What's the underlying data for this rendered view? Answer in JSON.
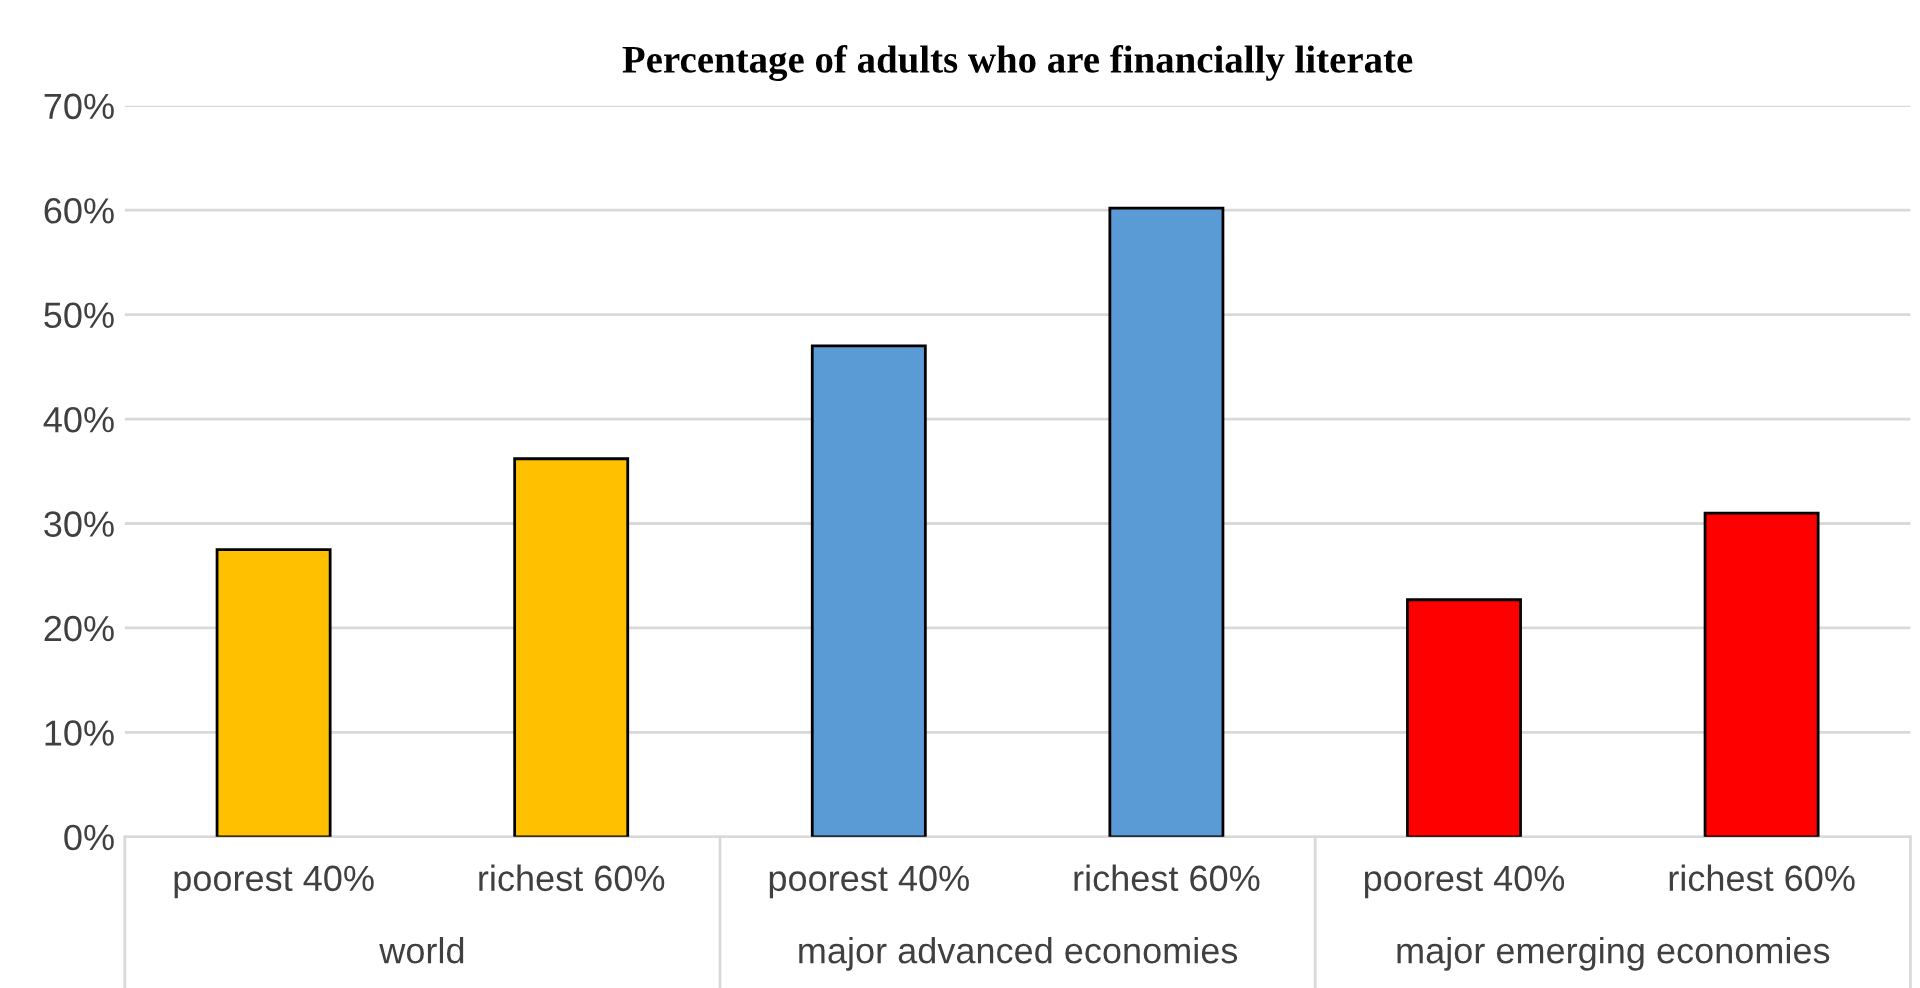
{
  "chart_data": {
    "type": "bar",
    "title": "Percentage of adults who are financially literate",
    "categories": [
      "poorest 40%",
      "richest 60%",
      "poorest 40%",
      "richest 60%",
      "poorest 40%",
      "richest 60%"
    ],
    "values": [
      27.5,
      36.2,
      47.0,
      60.2,
      22.7,
      31.0
    ],
    "colors": [
      "#ffc000",
      "#ffc000",
      "#5b9bd5",
      "#5b9bd5",
      "#ff0000",
      "#ff0000"
    ],
    "annotations": [
      "world",
      "major advanced economies",
      "major emerging economies"
    ],
    "ylim": [
      0,
      70
    ],
    "yticks": [
      {
        "value": 0,
        "label": "0%"
      },
      {
        "value": 10,
        "label": "10%"
      },
      {
        "value": 20,
        "label": "20%"
      },
      {
        "value": 30,
        "label": "30%"
      },
      {
        "value": 40,
        "label": "40%"
      },
      {
        "value": 50,
        "label": "50%"
      },
      {
        "value": 60,
        "label": "60%"
      },
      {
        "value": 70,
        "label": "70%"
      }
    ],
    "grid": "y"
  }
}
